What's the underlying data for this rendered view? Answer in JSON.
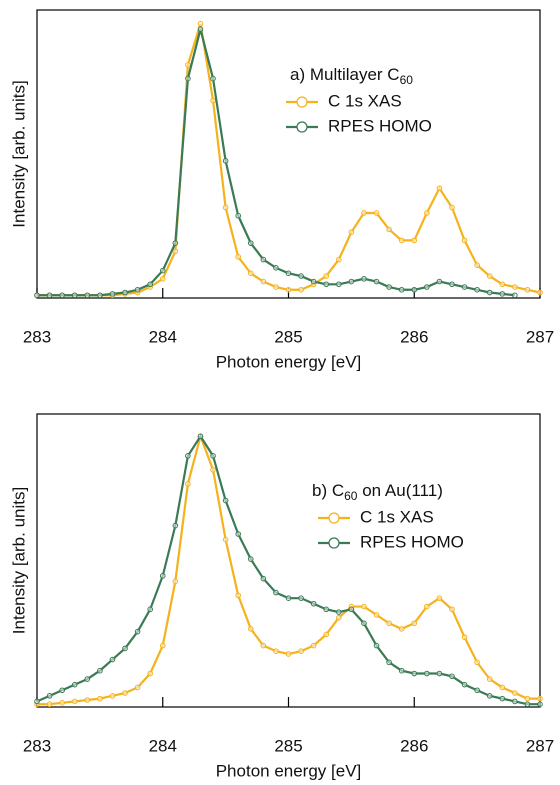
{
  "chart_data": [
    {
      "type": "line",
      "annotation": [
        {
          "text": "a) Multilayer C"
        },
        {
          "text": "60",
          "sub": true
        }
      ],
      "xlabel": "Photon energy [eV]",
      "ylabel": "Intensity [arb. units]",
      "xlim": [
        283,
        287
      ],
      "ylim": [
        0,
        1.05
      ],
      "xticks": [
        283,
        284,
        285,
        286,
        287
      ],
      "legend": "upper right",
      "x": [
        283.0,
        283.1,
        283.2,
        283.3,
        283.4,
        283.5,
        283.6,
        283.7,
        283.8,
        283.9,
        284.0,
        284.1,
        284.2,
        284.3,
        284.4,
        284.5,
        284.6,
        284.7,
        284.8,
        284.9,
        285.0,
        285.1,
        285.2,
        285.3,
        285.4,
        285.5,
        285.6,
        285.7,
        285.8,
        285.9,
        286.0,
        286.1,
        286.2,
        286.3,
        286.4,
        286.5,
        286.6,
        286.7,
        286.8,
        286.9,
        287.0
      ],
      "series": [
        {
          "name": "C 1s XAS",
          "color": "#f5b21b",
          "values": [
            0.01,
            0.01,
            0.01,
            0.01,
            0.01,
            0.01,
            0.01,
            0.015,
            0.02,
            0.04,
            0.07,
            0.17,
            0.85,
            1.0,
            0.72,
            0.33,
            0.15,
            0.09,
            0.06,
            0.04,
            0.03,
            0.03,
            0.05,
            0.08,
            0.14,
            0.24,
            0.31,
            0.31,
            0.25,
            0.21,
            0.21,
            0.31,
            0.4,
            0.33,
            0.21,
            0.12,
            0.08,
            0.05,
            0.04,
            0.03,
            0.02
          ]
        },
        {
          "name": "RPES HOMO",
          "color": "#3a7a55",
          "values": [
            0.01,
            0.01,
            0.01,
            0.01,
            0.01,
            0.01,
            0.015,
            0.02,
            0.03,
            0.05,
            0.1,
            0.2,
            0.8,
            0.98,
            0.8,
            0.5,
            0.3,
            0.2,
            0.14,
            0.11,
            0.09,
            0.08,
            0.06,
            0.05,
            0.05,
            0.06,
            0.07,
            0.06,
            0.04,
            0.03,
            0.03,
            0.04,
            0.06,
            0.05,
            0.04,
            0.03,
            0.02,
            0.015,
            0.01,
            null,
            null
          ]
        }
      ]
    },
    {
      "type": "line",
      "annotation": [
        {
          "text": "b) C"
        },
        {
          "text": "60",
          "sub": true
        },
        {
          "text": " on Au(111)"
        }
      ],
      "xlabel": "Photon energy [eV]",
      "ylabel": "Intensity [arb. units]",
      "xlim": [
        283,
        287
      ],
      "ylim": [
        0,
        1.05
      ],
      "xticks": [
        283,
        284,
        285,
        286,
        287
      ],
      "legend": "upper right",
      "x": [
        283.0,
        283.1,
        283.2,
        283.3,
        283.4,
        283.5,
        283.6,
        283.7,
        283.8,
        283.9,
        284.0,
        284.1,
        284.2,
        284.3,
        284.4,
        284.5,
        284.6,
        284.7,
        284.8,
        284.9,
        285.0,
        285.1,
        285.2,
        285.3,
        285.4,
        285.5,
        285.6,
        285.7,
        285.8,
        285.9,
        286.0,
        286.1,
        286.2,
        286.3,
        286.4,
        286.5,
        286.6,
        286.7,
        286.8,
        286.9,
        287.0
      ],
      "series": [
        {
          "name": "C 1s XAS",
          "color": "#f5b21b",
          "values": [
            0.01,
            0.01,
            0.015,
            0.02,
            0.025,
            0.03,
            0.04,
            0.05,
            0.07,
            0.12,
            0.22,
            0.45,
            0.8,
            0.97,
            0.85,
            0.6,
            0.4,
            0.28,
            0.22,
            0.2,
            0.19,
            0.2,
            0.22,
            0.26,
            0.32,
            0.36,
            0.36,
            0.33,
            0.3,
            0.28,
            0.3,
            0.36,
            0.39,
            0.35,
            0.25,
            0.16,
            0.1,
            0.07,
            0.05,
            0.03,
            0.03
          ]
        },
        {
          "name": "RPES HOMO",
          "color": "#3a7a55",
          "values": [
            0.02,
            0.04,
            0.06,
            0.08,
            0.1,
            0.13,
            0.17,
            0.21,
            0.27,
            0.35,
            0.47,
            0.65,
            0.9,
            0.97,
            0.9,
            0.74,
            0.62,
            0.53,
            0.46,
            0.41,
            0.39,
            0.39,
            0.37,
            0.35,
            0.34,
            0.35,
            0.3,
            0.22,
            0.16,
            0.13,
            0.12,
            0.12,
            0.12,
            0.11,
            0.08,
            0.06,
            0.04,
            0.03,
            0.02,
            0.01,
            0.01
          ]
        }
      ]
    }
  ]
}
